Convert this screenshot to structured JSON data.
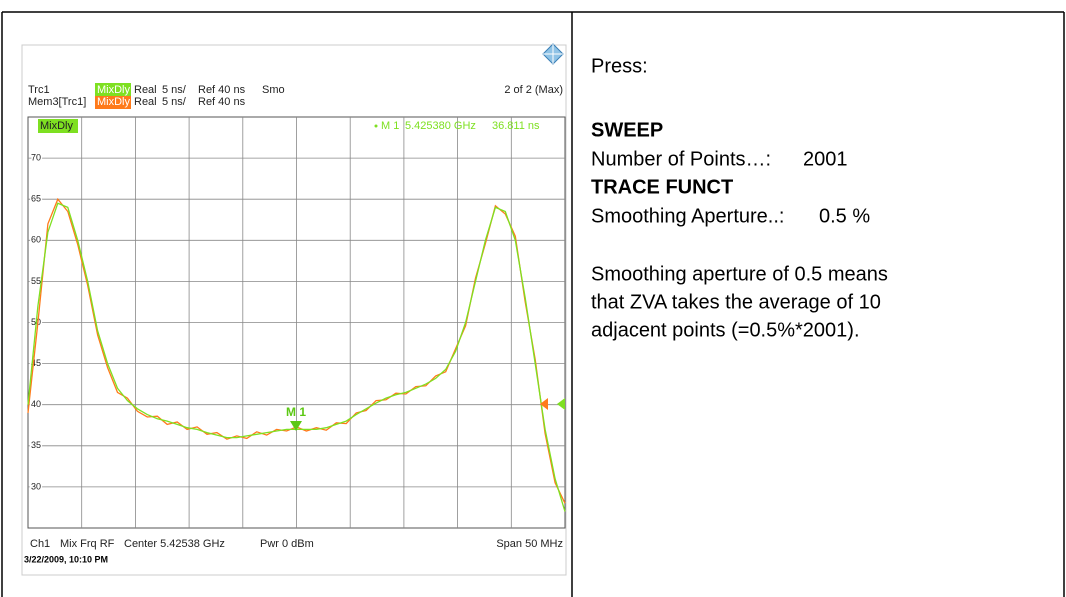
{
  "screen": {
    "trace_lines": [
      {
        "name": "Trc1",
        "label": "MixDly",
        "format": "Real",
        "scale": "5 ns/",
        "ref": "Ref 40 ns",
        "function": "Smo"
      },
      {
        "name": "Mem3[Trc1]",
        "label": "MixDly",
        "format": "Real",
        "scale": "5 ns/",
        "ref": "Ref 40 ns"
      }
    ],
    "page": "2 of 2 (Max)",
    "trace_tag": "MixDly",
    "marker": {
      "name": "M 1",
      "stimulus": "5.425380 GHz",
      "response": "36.811 ns"
    },
    "footer": {
      "channel": "Ch1",
      "mode": "Mix Frq RF",
      "center": "Center  5.42538 GHz",
      "power": "Pwr  0 dBm",
      "span": "Span  50 MHz"
    },
    "timestamp": "3/22/2009, 10:10 PM"
  },
  "chart_data": {
    "type": "line",
    "ylim": [
      25,
      75
    ],
    "yticks": [
      30,
      35,
      40,
      45,
      50,
      55,
      60,
      65,
      70
    ],
    "grid": true,
    "series": [
      {
        "name": "Mem3[Trc1]",
        "color": "#ff7a1a",
        "values": [
          39,
          50,
          62,
          65,
          63.5,
          59.5,
          54.5,
          48.5,
          44.5,
          41.5,
          40.8,
          39.2,
          38.5,
          38.6,
          37.6,
          37.9,
          37,
          37.3,
          36.4,
          36.6,
          35.8,
          36.2,
          35.9,
          36.7,
          36.3,
          37,
          36.8,
          37.3,
          36.8,
          37.2,
          36.9,
          37.8,
          37.7,
          39,
          39.3,
          40.5,
          40.6,
          41.4,
          41.3,
          42.2,
          42.3,
          43.5,
          44,
          46.8,
          49.6,
          55.4,
          59.6,
          64.2,
          63.2,
          60.5,
          52.5,
          45.5,
          36.5,
          30.5,
          28
        ]
      },
      {
        "name": "Trc1",
        "color": "#7ee021",
        "values": [
          40,
          52,
          61,
          64.5,
          64,
          60,
          55,
          49,
          45,
          42,
          40.5,
          39.5,
          38.8,
          38.3,
          38,
          37.6,
          37.2,
          37,
          36.6,
          36.3,
          36,
          36,
          36.2,
          36.4,
          36.6,
          36.8,
          37,
          37,
          37,
          37,
          37.2,
          37.6,
          38,
          38.8,
          39.5,
          40.2,
          40.8,
          41.2,
          41.5,
          42,
          42.5,
          43.2,
          44.3,
          46.5,
          50,
          55,
          60,
          64,
          63.5,
          60,
          53,
          45,
          37,
          31,
          27
        ]
      }
    ]
  },
  "instructions": {
    "intro": "Press:",
    "menu1": "SWEEP",
    "setting1": {
      "label": "Number of Points…:",
      "value": "2001"
    },
    "menu2": "TRACE FUNCT",
    "setting2": {
      "label": "Smoothing Aperture..:",
      "value": "0.5 %"
    },
    "note": [
      "Smoothing aperture of 0.5 means",
      "that ZVA takes the average of 10",
      "adjacent points (=0.5%*2001)."
    ]
  }
}
